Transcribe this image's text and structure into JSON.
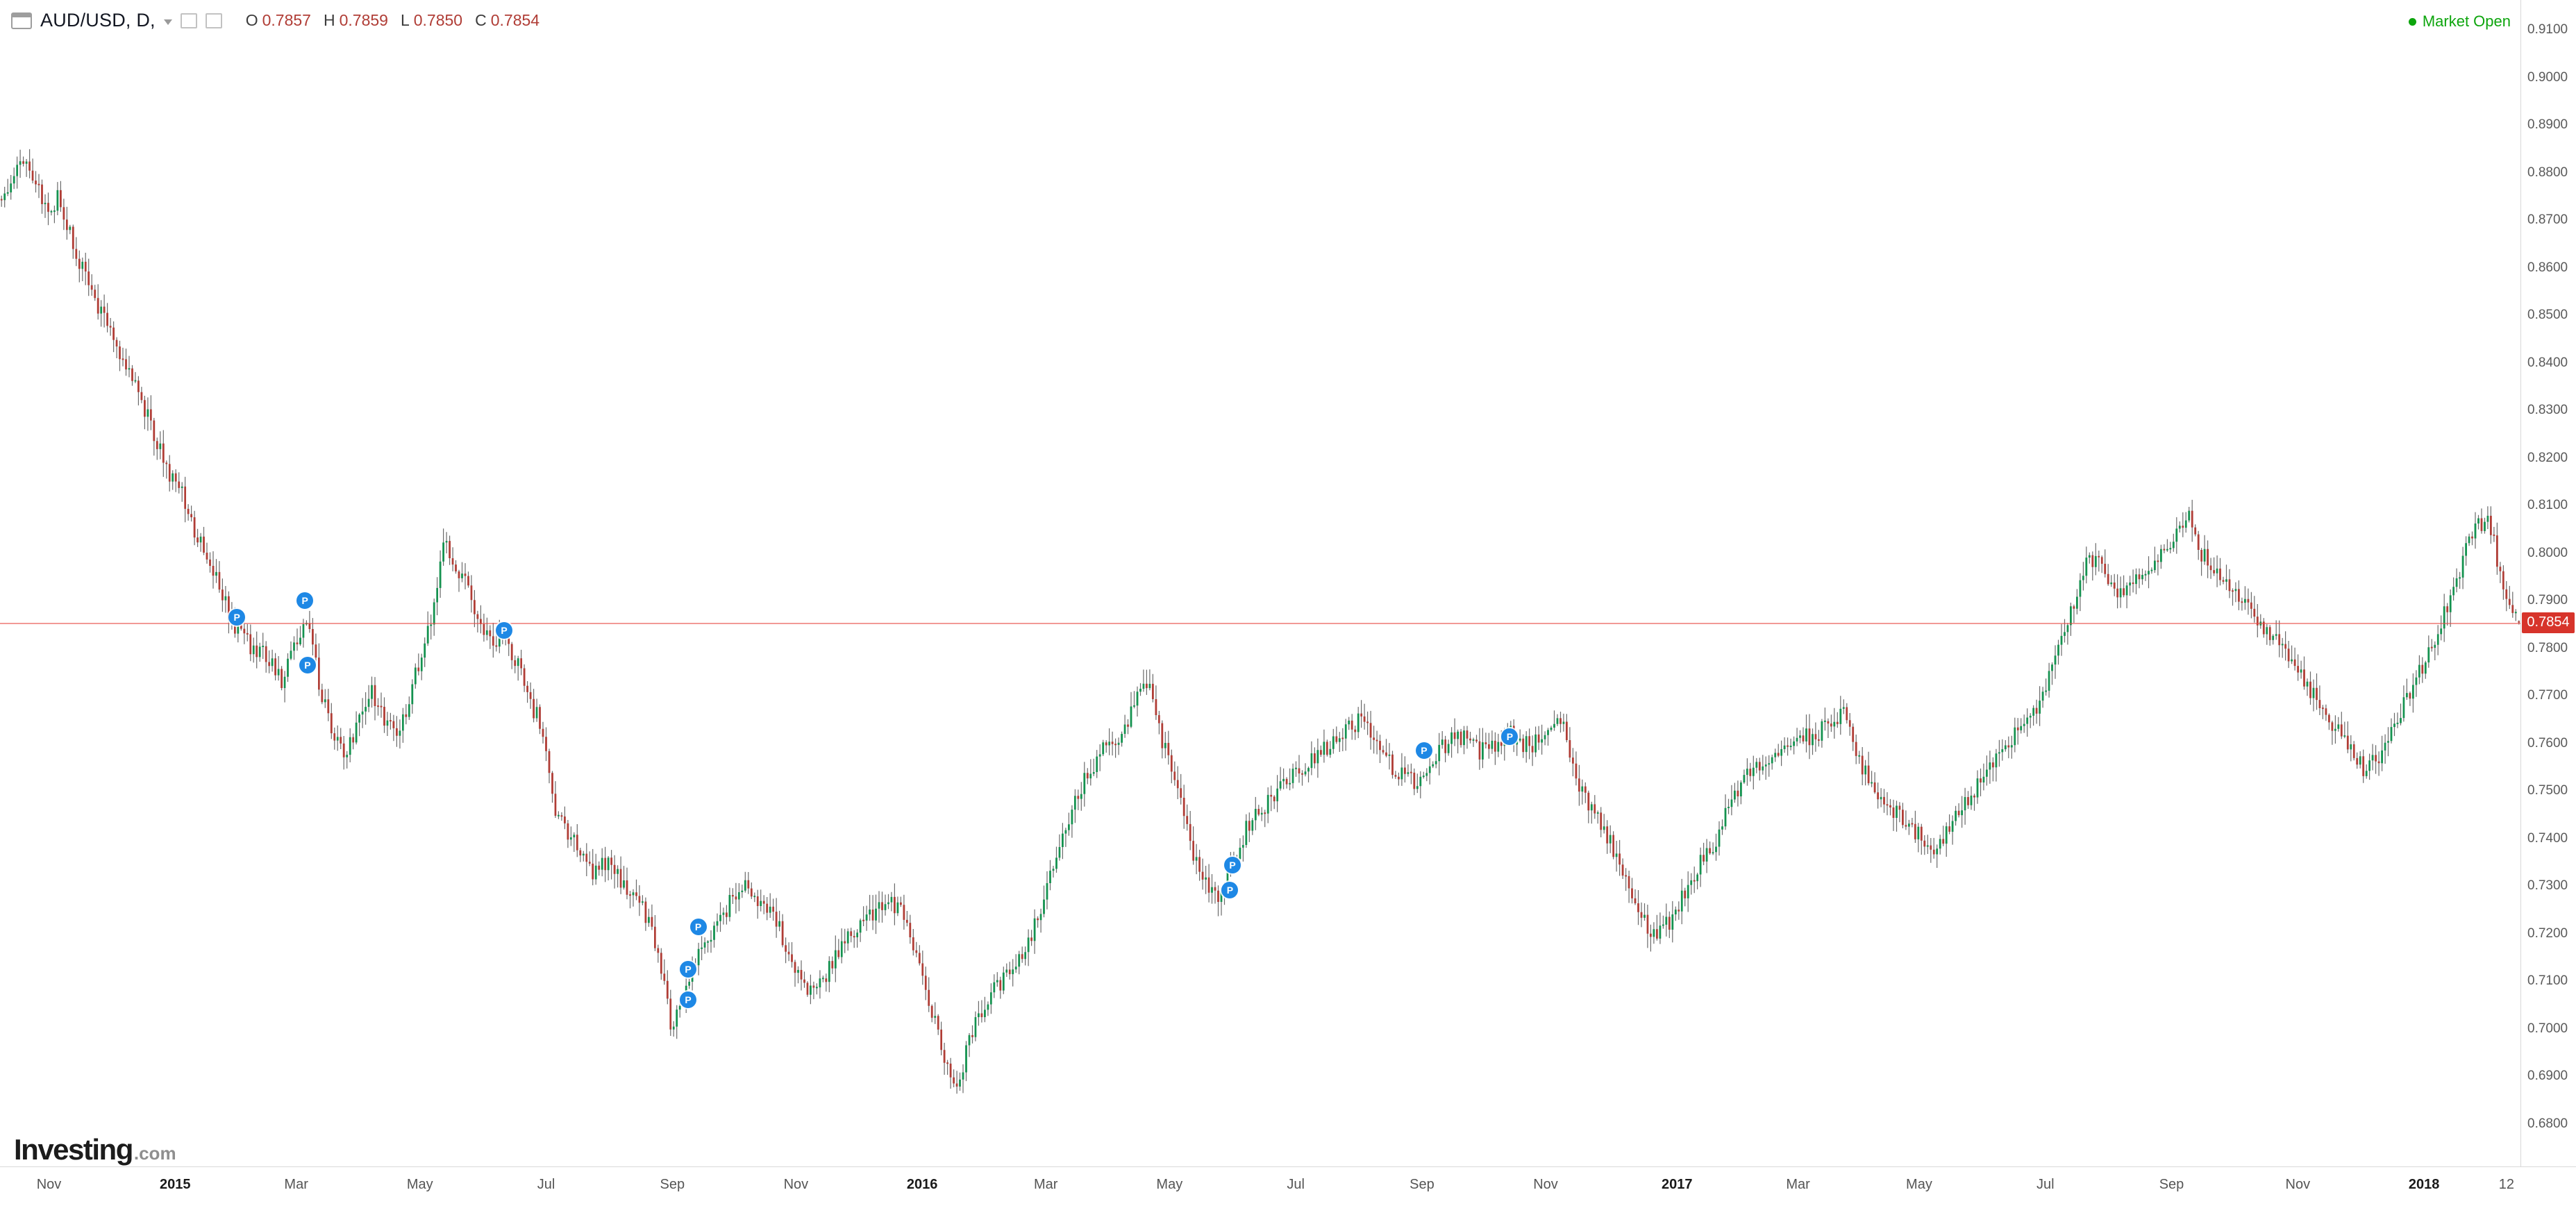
{
  "header": {
    "title": "AUD/USD, D,",
    "symbol": "AUD/USD",
    "interval": "D",
    "ohlc": {
      "o_label": "O",
      "o": "0.7857",
      "h_label": "H",
      "h": "0.7859",
      "l_label": "L",
      "l": "0.7850",
      "c_label": "C",
      "c": "0.7854"
    },
    "market_status": "Market Open"
  },
  "footer": {
    "logo_main": "Investing",
    "logo_suffix": ".com"
  },
  "colors": {
    "up": "#14924f",
    "down": "#b03d36",
    "wick": "#6a6a6a",
    "price_line": "#e8463f",
    "price_tag_bg": "#d7342b",
    "market_open": "#0da50d",
    "marker_bg": "#1e88e5",
    "axis_text": "#5a5a5a"
  },
  "price_axis": {
    "current_price": "0.7854",
    "ticks": [
      "0.9100",
      "0.9000",
      "0.8900",
      "0.8800",
      "0.8700",
      "0.8600",
      "0.8500",
      "0.8400",
      "0.8300",
      "0.8200",
      "0.8100",
      "0.8000",
      "0.7900",
      "0.7800",
      "0.7700",
      "0.7600",
      "0.7500",
      "0.7400",
      "0.7300",
      "0.7200",
      "0.7100",
      "0.7000",
      "0.6900",
      "0.6800"
    ]
  },
  "time_axis": {
    "ticks": [
      {
        "label": "Nov",
        "x": 0.019,
        "year": false
      },
      {
        "label": "2015",
        "x": 0.068,
        "year": true
      },
      {
        "label": "Mar",
        "x": 0.115,
        "year": false
      },
      {
        "label": "May",
        "x": 0.163,
        "year": false
      },
      {
        "label": "Jul",
        "x": 0.212,
        "year": false
      },
      {
        "label": "Sep",
        "x": 0.261,
        "year": false
      },
      {
        "label": "Nov",
        "x": 0.309,
        "year": false
      },
      {
        "label": "2016",
        "x": 0.358,
        "year": true
      },
      {
        "label": "Mar",
        "x": 0.406,
        "year": false
      },
      {
        "label": "May",
        "x": 0.454,
        "year": false
      },
      {
        "label": "Jul",
        "x": 0.503,
        "year": false
      },
      {
        "label": "Sep",
        "x": 0.552,
        "year": false
      },
      {
        "label": "Nov",
        "x": 0.6,
        "year": false
      },
      {
        "label": "2017",
        "x": 0.651,
        "year": true
      },
      {
        "label": "Mar",
        "x": 0.698,
        "year": false
      },
      {
        "label": "May",
        "x": 0.745,
        "year": false
      },
      {
        "label": "Jul",
        "x": 0.794,
        "year": false
      },
      {
        "label": "Sep",
        "x": 0.843,
        "year": false
      },
      {
        "label": "Nov",
        "x": 0.892,
        "year": false
      },
      {
        "label": "2018",
        "x": 0.941,
        "year": true
      },
      {
        "label": "12",
        "x": 0.973,
        "year": false
      }
    ]
  },
  "chart_data": {
    "type": "candlestick",
    "symbol": "AUD/USD",
    "timeframe": "D",
    "x_range": [
      "Nov 2014",
      "Jan 2018"
    ],
    "y_range": [
      0.68,
      0.91
    ],
    "grid": false,
    "legend_position": "top-left",
    "current_price": 0.7854,
    "last_candle": {
      "o": 0.7857,
      "h": 0.7859,
      "l": 0.785,
      "c": 0.7854
    },
    "candle_count": 810,
    "price_path": [
      [
        0.0,
        0.874
      ],
      [
        0.005,
        0.88
      ],
      [
        0.009,
        0.884
      ],
      [
        0.014,
        0.877
      ],
      [
        0.018,
        0.872
      ],
      [
        0.023,
        0.875
      ],
      [
        0.028,
        0.866
      ],
      [
        0.033,
        0.858
      ],
      [
        0.039,
        0.851
      ],
      [
        0.046,
        0.843
      ],
      [
        0.052,
        0.836
      ],
      [
        0.059,
        0.828
      ],
      [
        0.065,
        0.818
      ],
      [
        0.072,
        0.812
      ],
      [
        0.078,
        0.803
      ],
      [
        0.085,
        0.795
      ],
      [
        0.091,
        0.786
      ],
      [
        0.098,
        0.781
      ],
      [
        0.104,
        0.779
      ],
      [
        0.111,
        0.773
      ],
      [
        0.116,
        0.78
      ],
      [
        0.121,
        0.787
      ],
      [
        0.127,
        0.77
      ],
      [
        0.132,
        0.762
      ],
      [
        0.137,
        0.757
      ],
      [
        0.142,
        0.766
      ],
      [
        0.147,
        0.771
      ],
      [
        0.153,
        0.764
      ],
      [
        0.158,
        0.762
      ],
      [
        0.163,
        0.772
      ],
      [
        0.168,
        0.781
      ],
      [
        0.172,
        0.79
      ],
      [
        0.176,
        0.803
      ],
      [
        0.18,
        0.797
      ],
      [
        0.185,
        0.794
      ],
      [
        0.189,
        0.786
      ],
      [
        0.194,
        0.781
      ],
      [
        0.199,
        0.782
      ],
      [
        0.204,
        0.778
      ],
      [
        0.209,
        0.77
      ],
      [
        0.214,
        0.764
      ],
      [
        0.219,
        0.748
      ],
      [
        0.224,
        0.742
      ],
      [
        0.23,
        0.737
      ],
      [
        0.235,
        0.733
      ],
      [
        0.241,
        0.735
      ],
      [
        0.248,
        0.729
      ],
      [
        0.254,
        0.727
      ],
      [
        0.261,
        0.715
      ],
      [
        0.266,
        0.7
      ],
      [
        0.271,
        0.708
      ],
      [
        0.277,
        0.716
      ],
      [
        0.282,
        0.72
      ],
      [
        0.287,
        0.724
      ],
      [
        0.294,
        0.731
      ],
      [
        0.3,
        0.727
      ],
      [
        0.307,
        0.724
      ],
      [
        0.313,
        0.715
      ],
      [
        0.32,
        0.707
      ],
      [
        0.326,
        0.71
      ],
      [
        0.333,
        0.717
      ],
      [
        0.339,
        0.721
      ],
      [
        0.346,
        0.724
      ],
      [
        0.352,
        0.727
      ],
      [
        0.359,
        0.724
      ],
      [
        0.364,
        0.715
      ],
      [
        0.369,
        0.705
      ],
      [
        0.374,
        0.694
      ],
      [
        0.38,
        0.687
      ],
      [
        0.385,
        0.699
      ],
      [
        0.391,
        0.706
      ],
      [
        0.398,
        0.71
      ],
      [
        0.404,
        0.714
      ],
      [
        0.411,
        0.722
      ],
      [
        0.417,
        0.733
      ],
      [
        0.424,
        0.745
      ],
      [
        0.431,
        0.753
      ],
      [
        0.437,
        0.758
      ],
      [
        0.444,
        0.761
      ],
      [
        0.45,
        0.768
      ],
      [
        0.455,
        0.773
      ],
      [
        0.461,
        0.76
      ],
      [
        0.466,
        0.753
      ],
      [
        0.471,
        0.741
      ],
      [
        0.476,
        0.732
      ],
      [
        0.483,
        0.727
      ],
      [
        0.489,
        0.734
      ],
      [
        0.496,
        0.744
      ],
      [
        0.502,
        0.747
      ],
      [
        0.509,
        0.751
      ],
      [
        0.515,
        0.754
      ],
      [
        0.522,
        0.757
      ],
      [
        0.528,
        0.76
      ],
      [
        0.535,
        0.763
      ],
      [
        0.541,
        0.766
      ],
      [
        0.548,
        0.759
      ],
      [
        0.554,
        0.754
      ],
      [
        0.561,
        0.752
      ],
      [
        0.568,
        0.756
      ],
      [
        0.574,
        0.76
      ],
      [
        0.581,
        0.762
      ],
      [
        0.587,
        0.758
      ],
      [
        0.594,
        0.76
      ],
      [
        0.6,
        0.762
      ],
      [
        0.607,
        0.759
      ],
      [
        0.613,
        0.763
      ],
      [
        0.62,
        0.766
      ],
      [
        0.625,
        0.753
      ],
      [
        0.63,
        0.747
      ],
      [
        0.636,
        0.743
      ],
      [
        0.643,
        0.735
      ],
      [
        0.649,
        0.727
      ],
      [
        0.656,
        0.719
      ],
      [
        0.662,
        0.722
      ],
      [
        0.669,
        0.729
      ],
      [
        0.675,
        0.735
      ],
      [
        0.682,
        0.741
      ],
      [
        0.688,
        0.749
      ],
      [
        0.695,
        0.754
      ],
      [
        0.701,
        0.757
      ],
      [
        0.708,
        0.759
      ],
      [
        0.714,
        0.761
      ],
      [
        0.721,
        0.762
      ],
      [
        0.727,
        0.764
      ],
      [
        0.732,
        0.766
      ],
      [
        0.737,
        0.757
      ],
      [
        0.744,
        0.751
      ],
      [
        0.75,
        0.747
      ],
      [
        0.757,
        0.743
      ],
      [
        0.763,
        0.74
      ],
      [
        0.77,
        0.738
      ],
      [
        0.776,
        0.745
      ],
      [
        0.783,
        0.75
      ],
      [
        0.789,
        0.754
      ],
      [
        0.796,
        0.759
      ],
      [
        0.802,
        0.764
      ],
      [
        0.809,
        0.768
      ],
      [
        0.816,
        0.778
      ],
      [
        0.822,
        0.787
      ],
      [
        0.828,
        0.797
      ],
      [
        0.834,
        0.8
      ],
      [
        0.839,
        0.791
      ],
      [
        0.845,
        0.793
      ],
      [
        0.851,
        0.795
      ],
      [
        0.858,
        0.8
      ],
      [
        0.864,
        0.804
      ],
      [
        0.869,
        0.807
      ],
      [
        0.874,
        0.8
      ],
      [
        0.881,
        0.796
      ],
      [
        0.887,
        0.791
      ],
      [
        0.894,
        0.787
      ],
      [
        0.9,
        0.784
      ],
      [
        0.907,
        0.781
      ],
      [
        0.913,
        0.774
      ],
      [
        0.92,
        0.769
      ],
      [
        0.926,
        0.764
      ],
      [
        0.933,
        0.758
      ],
      [
        0.939,
        0.754
      ],
      [
        0.946,
        0.758
      ],
      [
        0.952,
        0.766
      ],
      [
        0.959,
        0.773
      ],
      [
        0.965,
        0.78
      ],
      [
        0.972,
        0.79
      ],
      [
        0.978,
        0.799
      ],
      [
        0.984,
        0.806
      ],
      [
        0.988,
        0.808
      ],
      [
        0.992,
        0.797
      ],
      [
        0.997,
        0.789
      ],
      [
        1.0,
        0.7854
      ]
    ],
    "markers": [
      {
        "x": 0.094,
        "price": 0.7865,
        "label": "P"
      },
      {
        "x": 0.121,
        "price": 0.79,
        "label": "P"
      },
      {
        "x": 0.122,
        "price": 0.7765,
        "label": "P"
      },
      {
        "x": 0.2,
        "price": 0.7838,
        "label": "P"
      },
      {
        "x": 0.277,
        "price": 0.7215,
        "label": "P"
      },
      {
        "x": 0.273,
        "price": 0.7125,
        "label": "P"
      },
      {
        "x": 0.273,
        "price": 0.7062,
        "label": "P"
      },
      {
        "x": 0.489,
        "price": 0.7345,
        "label": "P"
      },
      {
        "x": 0.488,
        "price": 0.7292,
        "label": "P"
      },
      {
        "x": 0.565,
        "price": 0.7585,
        "label": "P"
      },
      {
        "x": 0.599,
        "price": 0.7615,
        "label": "P"
      }
    ]
  }
}
